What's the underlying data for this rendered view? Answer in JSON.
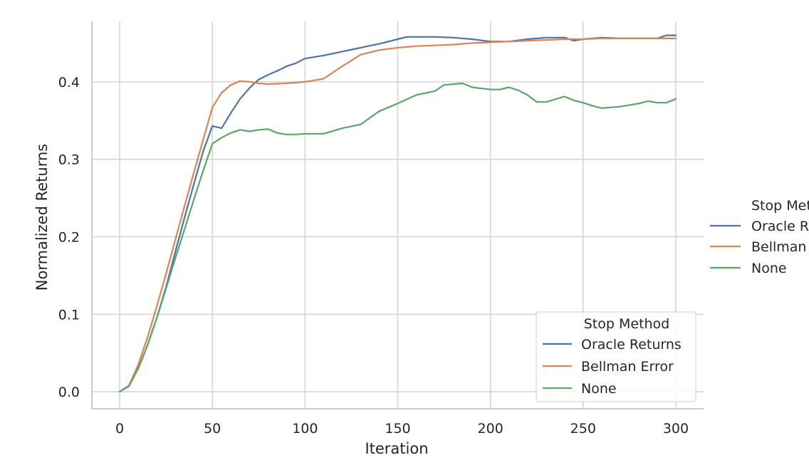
{
  "chart_data": {
    "type": "line",
    "title": "",
    "xlabel": "Iteration",
    "ylabel": "Normalized Returns",
    "xlim": [
      -15,
      315
    ],
    "ylim": [
      -0.022,
      0.478
    ],
    "xticks": [
      0,
      50,
      100,
      150,
      200,
      250,
      300
    ],
    "yticks": [
      0.0,
      0.1,
      0.2,
      0.3,
      0.4
    ],
    "x_tick_labels": [
      "0",
      "50",
      "100",
      "150",
      "200",
      "250",
      "300"
    ],
    "y_tick_labels": [
      "0.0",
      "0.1",
      "0.2",
      "0.3",
      "0.4"
    ],
    "grid": true,
    "legend": {
      "title": "Stop Method",
      "placement": "lower-right",
      "entries": [
        "Oracle Returns",
        "Bellman Error",
        "None"
      ]
    },
    "outer_legend": {
      "title": "Stop Method",
      "placement": "right-outside",
      "entries": [
        "Oracle Returns",
        "Bellman Error",
        "None"
      ]
    },
    "series": [
      {
        "name": "Oracle Returns",
        "color": "#4c72b0",
        "x": [
          0,
          5,
          10,
          15,
          20,
          25,
          30,
          35,
          40,
          45,
          50,
          55,
          60,
          65,
          70,
          75,
          80,
          85,
          90,
          95,
          100,
          110,
          120,
          130,
          140,
          150,
          155,
          160,
          170,
          180,
          190,
          200,
          210,
          220,
          230,
          240,
          245,
          250,
          260,
          270,
          280,
          290,
          295,
          300
        ],
        "values": [
          0.0,
          0.008,
          0.03,
          0.06,
          0.095,
          0.135,
          0.18,
          0.225,
          0.268,
          0.31,
          0.343,
          0.34,
          0.36,
          0.378,
          0.392,
          0.403,
          0.409,
          0.414,
          0.42,
          0.424,
          0.43,
          0.434,
          0.439,
          0.444,
          0.449,
          0.455,
          0.458,
          0.458,
          0.458,
          0.457,
          0.455,
          0.452,
          0.452,
          0.455,
          0.457,
          0.457,
          0.453,
          0.455,
          0.457,
          0.456,
          0.456,
          0.456,
          0.46,
          0.46
        ]
      },
      {
        "name": "Bellman Error",
        "color": "#dd8452",
        "x": [
          0,
          5,
          10,
          15,
          20,
          25,
          30,
          35,
          40,
          45,
          50,
          55,
          60,
          65,
          70,
          75,
          80,
          90,
          100,
          110,
          120,
          130,
          140,
          150,
          160,
          170,
          180,
          190,
          200,
          210,
          220,
          230,
          240,
          250,
          260,
          270,
          280,
          290,
          300
        ],
        "values": [
          0.0,
          0.008,
          0.035,
          0.07,
          0.11,
          0.152,
          0.196,
          0.24,
          0.283,
          0.325,
          0.367,
          0.386,
          0.396,
          0.401,
          0.4,
          0.398,
          0.397,
          0.398,
          0.4,
          0.404,
          0.42,
          0.435,
          0.441,
          0.444,
          0.446,
          0.447,
          0.448,
          0.45,
          0.451,
          0.452,
          0.453,
          0.454,
          0.455,
          0.455,
          0.456,
          0.456,
          0.456,
          0.456,
          0.456
        ]
      },
      {
        "name": "None",
        "color": "#55a868",
        "x": [
          0,
          5,
          10,
          15,
          20,
          25,
          30,
          35,
          40,
          45,
          50,
          55,
          60,
          65,
          70,
          75,
          80,
          85,
          90,
          95,
          100,
          110,
          120,
          130,
          140,
          150,
          160,
          170,
          175,
          180,
          185,
          190,
          200,
          205,
          210,
          215,
          220,
          225,
          230,
          240,
          245,
          250,
          255,
          260,
          265,
          270,
          280,
          285,
          290,
          295,
          300
        ],
        "values": [
          0.0,
          0.007,
          0.03,
          0.06,
          0.095,
          0.133,
          0.172,
          0.21,
          0.248,
          0.285,
          0.32,
          0.328,
          0.334,
          0.338,
          0.336,
          0.338,
          0.339,
          0.334,
          0.332,
          0.332,
          0.333,
          0.333,
          0.34,
          0.345,
          0.362,
          0.372,
          0.383,
          0.388,
          0.396,
          0.397,
          0.398,
          0.393,
          0.39,
          0.39,
          0.393,
          0.389,
          0.383,
          0.374,
          0.374,
          0.381,
          0.376,
          0.373,
          0.369,
          0.366,
          0.367,
          0.368,
          0.372,
          0.375,
          0.373,
          0.373,
          0.378
        ]
      }
    ]
  }
}
